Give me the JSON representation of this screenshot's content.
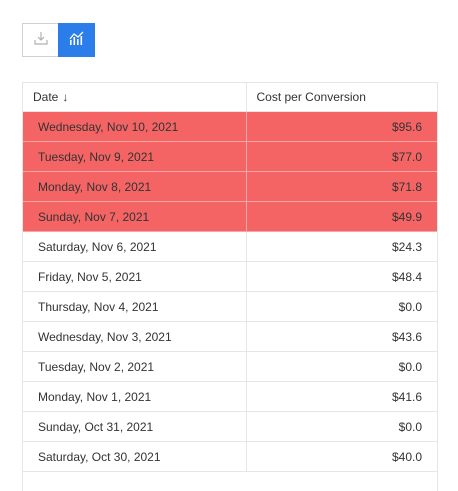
{
  "toolbar": {
    "download_icon": "download-icon",
    "chart_icon": "bar-line-chart-icon",
    "active_color": "#2b7de9"
  },
  "table": {
    "columns": [
      "Date",
      "Cost per Conversion"
    ],
    "sort_icon": "arrow-down-icon",
    "highlight_color": "#f46464",
    "rows": [
      {
        "date": "Wednesday, Nov 10, 2021",
        "value": "$95.6"
      },
      {
        "date": "Tuesday, Nov 9, 2021",
        "value": "$77.0"
      },
      {
        "date": "Monday, Nov 8, 2021",
        "value": "$71.8"
      },
      {
        "date": "Sunday, Nov 7, 2021",
        "value": "$49.9"
      },
      {
        "date": "Saturday, Nov 6, 2021",
        "value": "$24.3"
      },
      {
        "date": "Friday, Nov 5, 2021",
        "value": "$48.4"
      },
      {
        "date": "Thursday, Nov 4, 2021",
        "value": "$0.0"
      },
      {
        "date": "Wednesday, Nov 3, 2021",
        "value": "$43.6"
      },
      {
        "date": "Tuesday, Nov 2, 2021",
        "value": "$0.0"
      },
      {
        "date": "Monday, Nov 1, 2021",
        "value": "$41.6"
      },
      {
        "date": "Sunday, Oct 31, 2021",
        "value": "$0.0"
      },
      {
        "date": "Saturday, Oct 30, 2021",
        "value": "$40.0"
      }
    ]
  }
}
